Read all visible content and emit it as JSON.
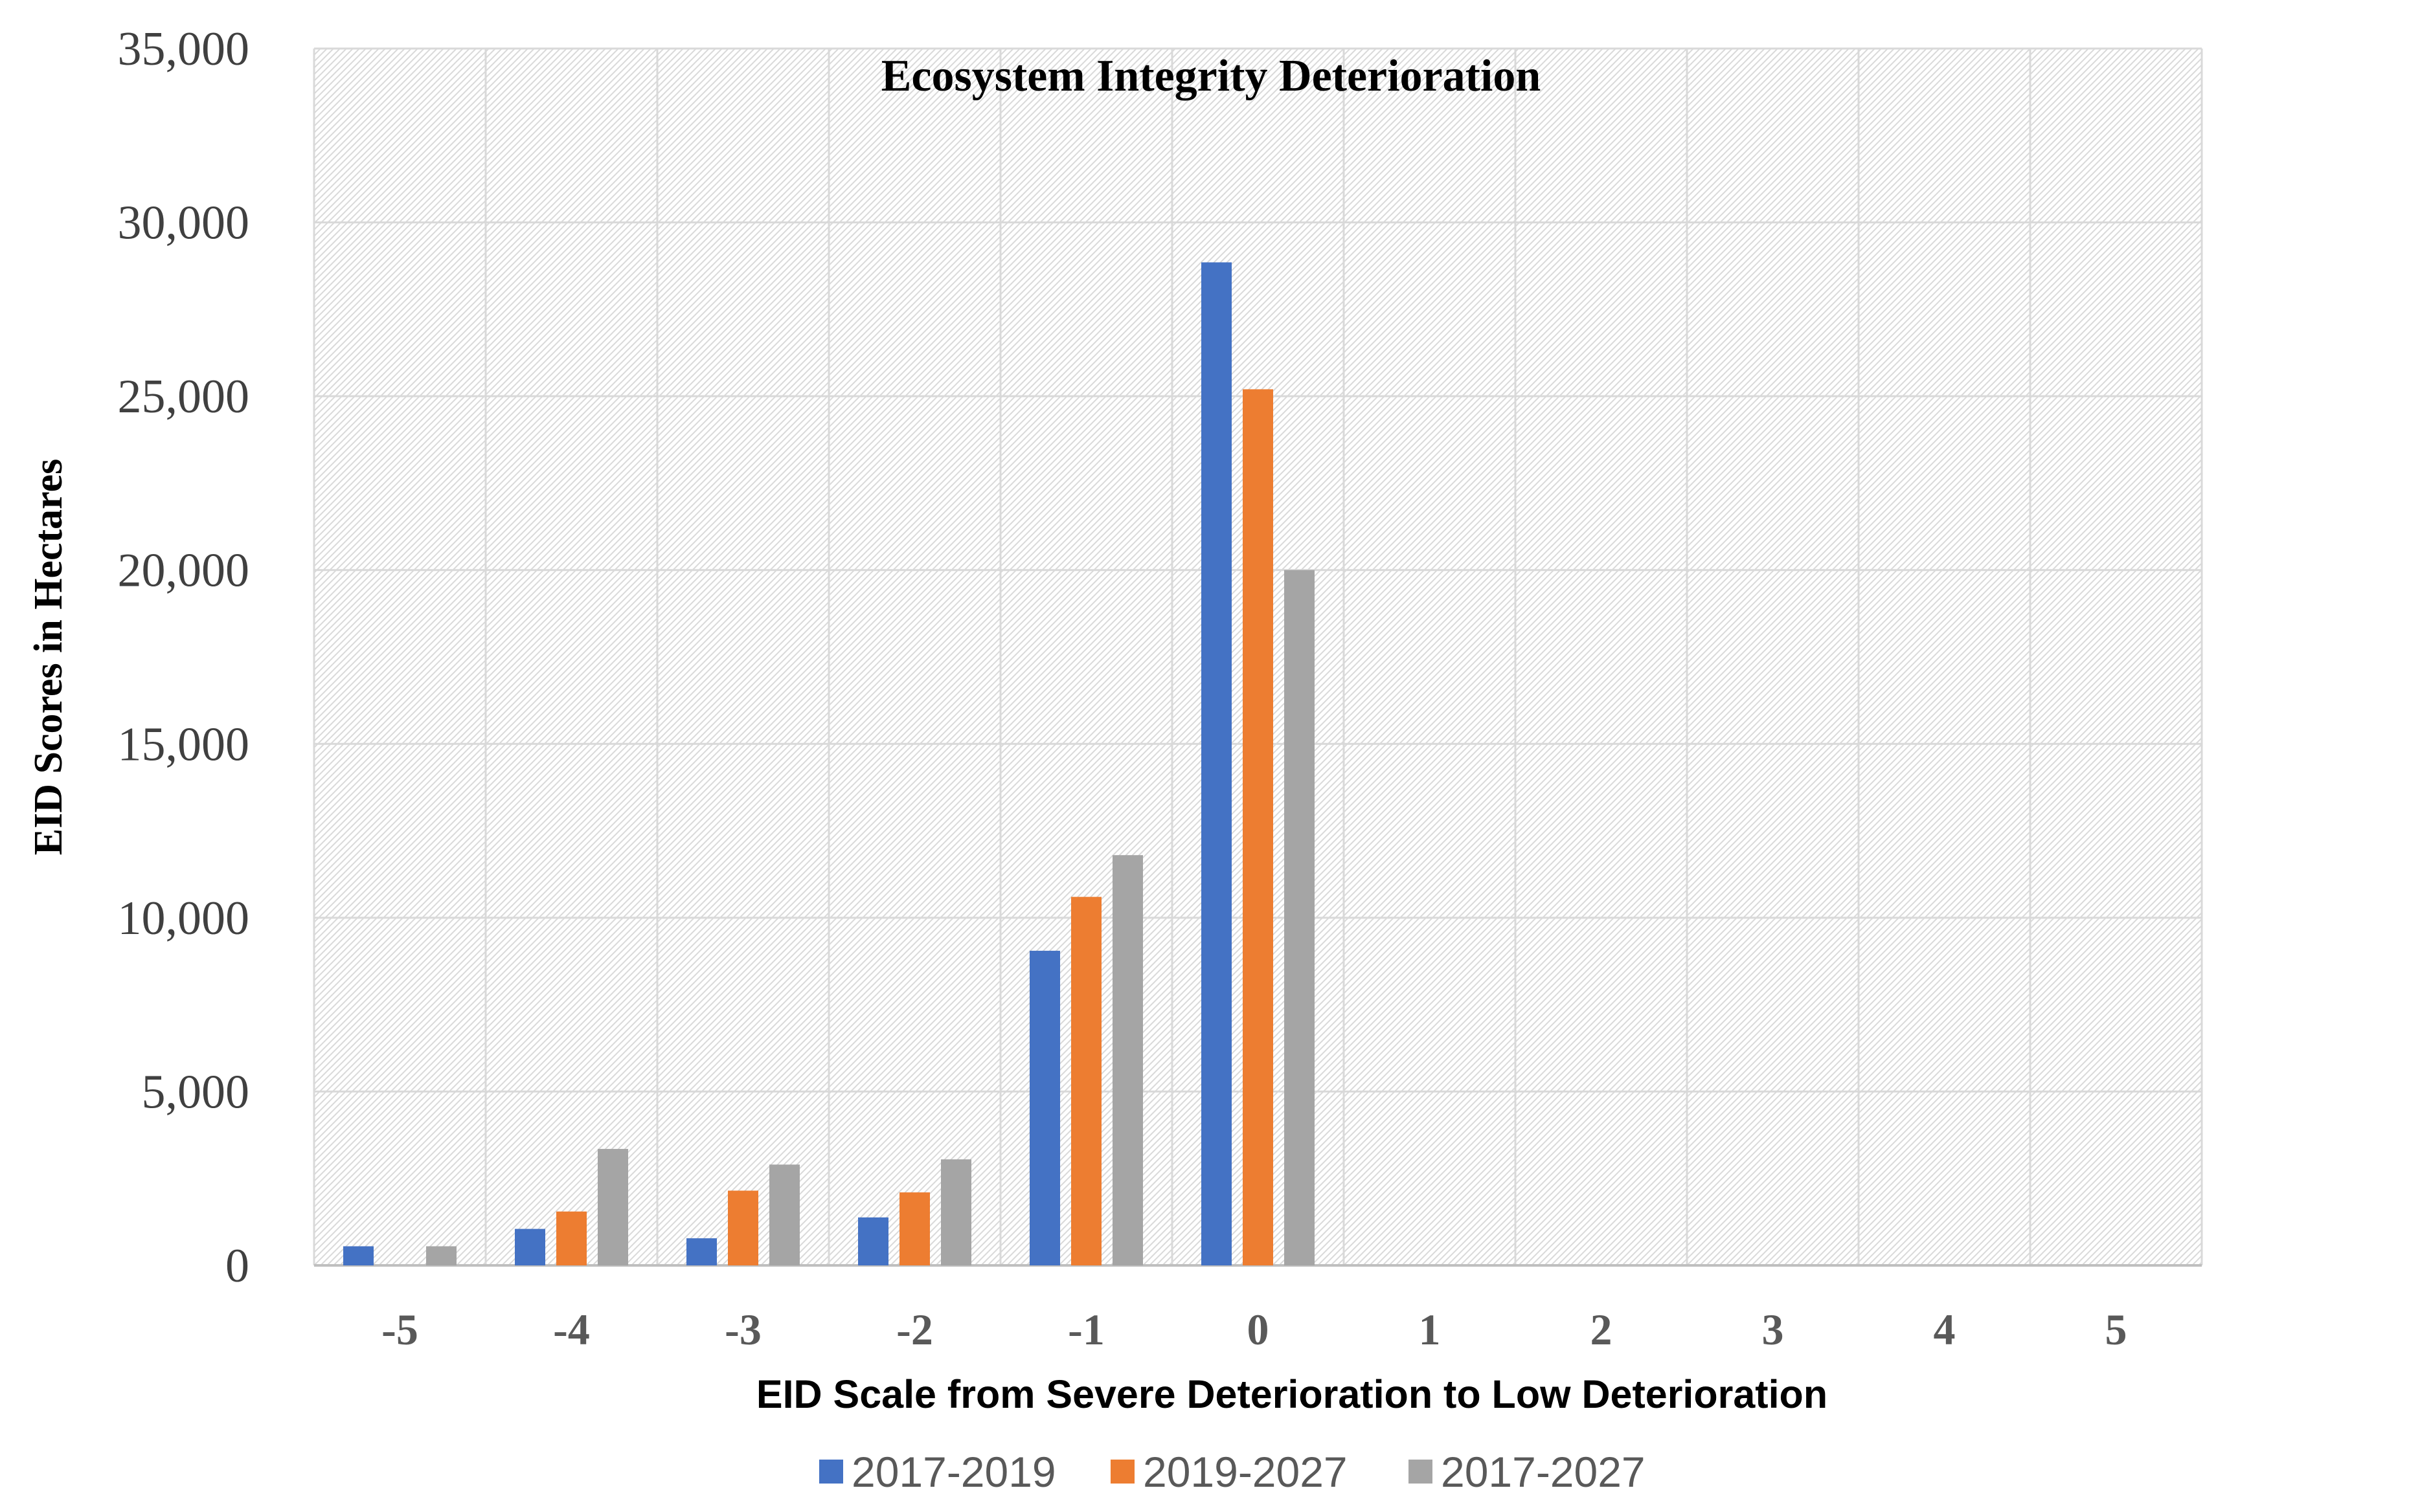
{
  "chart_data": {
    "type": "bar",
    "title": "Ecosystem Integrity Deterioration",
    "xlabel": "EID Scale from Severe Deterioration to Low Deterioration",
    "ylabel": "EID Scores in Hectares",
    "categories": [
      "-5",
      "-4",
      "-3",
      "-2",
      "-1",
      "0",
      "1",
      "2",
      "3",
      "4",
      "5"
    ],
    "series": [
      {
        "name": "2017-2019",
        "color": "#4472C4",
        "values": [
          550,
          1050,
          780,
          1380,
          9050,
          28850,
          0,
          0,
          0,
          0,
          0
        ]
      },
      {
        "name": "2019-2027",
        "color": "#ED7D31",
        "values": [
          0,
          1550,
          2150,
          2100,
          10600,
          25200,
          0,
          0,
          0,
          0,
          0
        ]
      },
      {
        "name": "2017-2027",
        "color": "#A5A5A5",
        "values": [
          550,
          3350,
          2900,
          3050,
          11800,
          20000,
          0,
          0,
          0,
          0,
          0
        ]
      }
    ],
    "ylim": [
      0,
      35000
    ],
    "yticks": [
      0,
      5000,
      10000,
      15000,
      20000,
      25000,
      30000,
      35000
    ],
    "ytick_labels": [
      "0",
      "5,000",
      "10,000",
      "15,000",
      "20,000",
      "25,000",
      "30,000",
      "35,000"
    ],
    "grid": true,
    "legend_position": "bottom"
  }
}
